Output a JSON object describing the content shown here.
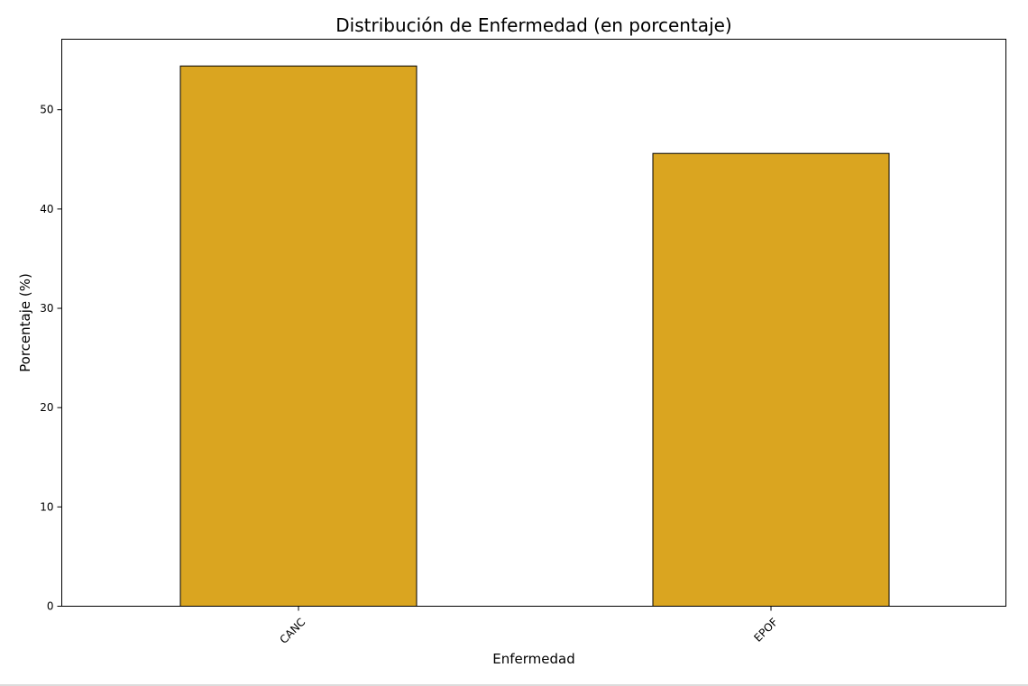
{
  "chart_data": {
    "type": "bar",
    "title": "Distribución de Enfermedad (en porcentaje)",
    "xlabel": "Enfermedad",
    "ylabel": "Porcentaje (%)",
    "categories": [
      "CANC",
      "EPOF"
    ],
    "values": [
      54.4,
      45.6
    ],
    "ylim": [
      0,
      57.1
    ],
    "yticks": [
      "0",
      "10",
      "20",
      "30",
      "40",
      "50"
    ],
    "bar_color": "#DAA520",
    "edge_color": "#000000",
    "grid": false,
    "legend": "none",
    "x_tick_rotation": "45deg"
  }
}
